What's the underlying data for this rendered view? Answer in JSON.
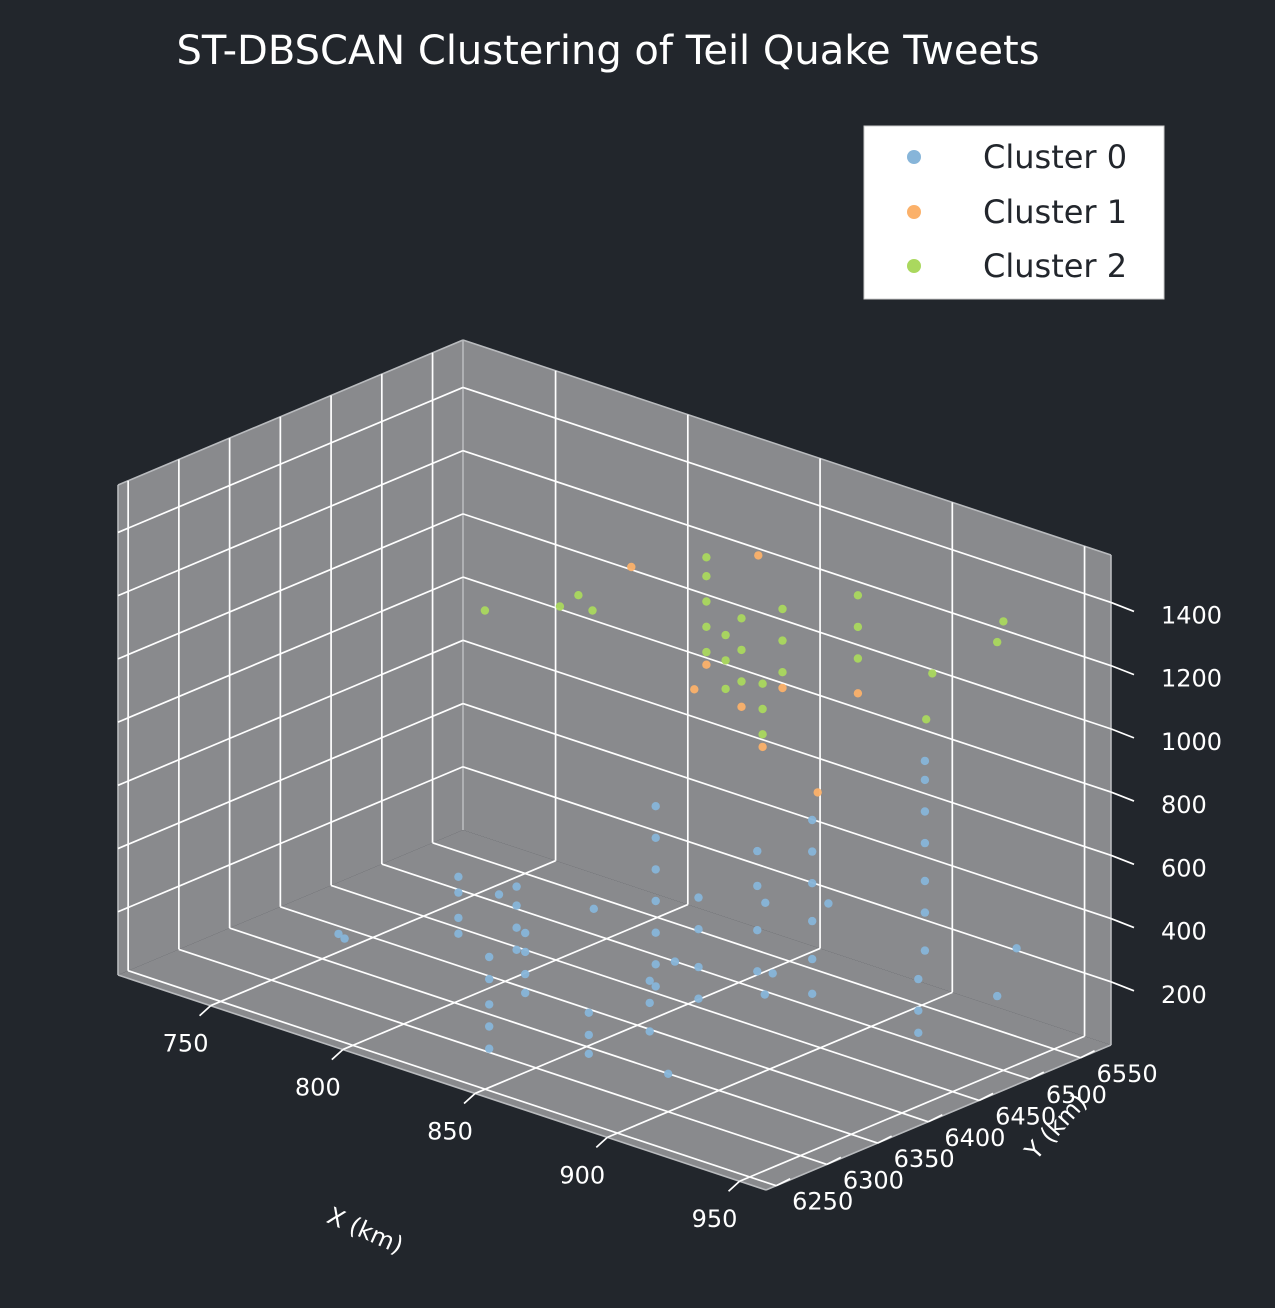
{
  "chart_data": {
    "type": "scatter",
    "dimensions": 3,
    "title": "ST-DBSCAN Clustering of Teil Quake Tweets",
    "xlabel": "X (km)",
    "ylabel": "Y (km)",
    "zlabel": "",
    "xlim": [
      715,
      960
    ],
    "ylim": [
      6240,
      6580
    ],
    "zlim": [
      0,
      1550
    ],
    "x_ticks": [
      750,
      800,
      850,
      900,
      950
    ],
    "y_ticks": [
      6250,
      6300,
      6350,
      6400,
      6450,
      6500,
      6550
    ],
    "z_ticks": [
      200,
      400,
      600,
      800,
      1000,
      1200,
      1400
    ],
    "grid": true,
    "legend_position": "top-right",
    "background": "#22262c",
    "pane_color": "#898a8d",
    "series": [
      {
        "name": "Cluster 0",
        "color": "#87b5d9",
        "points": [
          [
            790,
            6380,
            150
          ],
          [
            790,
            6380,
            200
          ],
          [
            790,
            6380,
            280
          ],
          [
            790,
            6380,
            330
          ],
          [
            812,
            6380,
            160
          ],
          [
            812,
            6380,
            230
          ],
          [
            812,
            6380,
            300
          ],
          [
            812,
            6380,
            360
          ],
          [
            826,
            6352,
            100
          ],
          [
            826,
            6352,
            160
          ],
          [
            826,
            6352,
            230
          ],
          [
            826,
            6352,
            290
          ],
          [
            840,
            6280,
            60
          ],
          [
            840,
            6280,
            130
          ],
          [
            840,
            6280,
            200
          ],
          [
            840,
            6280,
            280
          ],
          [
            840,
            6280,
            350
          ],
          [
            855,
            6405,
            130
          ],
          [
            855,
            6405,
            200
          ],
          [
            855,
            6405,
            300
          ],
          [
            855,
            6405,
            400
          ],
          [
            855,
            6405,
            500
          ],
          [
            855,
            6405,
            600
          ],
          [
            855,
            6405,
            700
          ],
          [
            875,
            6395,
            160
          ],
          [
            875,
            6395,
            260
          ],
          [
            875,
            6395,
            380
          ],
          [
            875,
            6395,
            480
          ],
          [
            880,
            6440,
            200
          ],
          [
            880,
            6440,
            330
          ],
          [
            880,
            6440,
            470
          ],
          [
            880,
            6440,
            580
          ],
          [
            895,
            6455,
            150
          ],
          [
            895,
            6455,
            260
          ],
          [
            895,
            6455,
            380
          ],
          [
            895,
            6455,
            500
          ],
          [
            895,
            6455,
            600
          ],
          [
            895,
            6455,
            700
          ],
          [
            905,
            6540,
            200
          ],
          [
            905,
            6540,
            320
          ],
          [
            905,
            6540,
            420
          ],
          [
            905,
            6540,
            540
          ],
          [
            905,
            6540,
            640
          ],
          [
            905,
            6540,
            740
          ],
          [
            905,
            6540,
            800
          ],
          [
            937,
            6450,
            150
          ],
          [
            937,
            6450,
            220
          ],
          [
            937,
            6450,
            320
          ],
          [
            870,
            6300,
            100
          ],
          [
            870,
            6300,
            160
          ],
          [
            870,
            6300,
            230
          ],
          [
            870,
            6360,
            90
          ],
          [
            870,
            6360,
            180
          ],
          [
            870,
            6360,
            250
          ],
          [
            760,
            6340,
            120
          ],
          [
            822,
            6430,
            250
          ],
          [
            940,
            6520,
            180
          ],
          [
            790,
            6420,
            220
          ],
          [
            955,
            6500,
            400
          ],
          [
            905,
            6390,
            330
          ],
          [
            845,
            6450,
            120
          ],
          [
            880,
            6510,
            320
          ],
          [
            925,
            6330,
            400
          ],
          [
            770,
            6320,
            160
          ],
          [
            860,
            6500,
            280
          ],
          [
            900,
            6300,
            120
          ]
        ]
      },
      {
        "name": "Cluster 1",
        "color": "#fbb16a",
        "points": [
          [
            855,
            6455,
            1080
          ],
          [
            860,
            6430,
            1050
          ],
          [
            874,
            6440,
            1020
          ],
          [
            878,
            6470,
            1050
          ],
          [
            895,
            6500,
            1040
          ],
          [
            905,
            6380,
            1060
          ],
          [
            922,
            6390,
            950
          ],
          [
            865,
            6480,
            1420
          ],
          [
            817,
            6480,
            1250
          ]
        ]
      },
      {
        "name": "Cluster 2",
        "color": "#aad85e",
        "points": [
          [
            855,
            6455,
            1120
          ],
          [
            855,
            6455,
            1200
          ],
          [
            855,
            6455,
            1280
          ],
          [
            855,
            6455,
            1360
          ],
          [
            855,
            6455,
            1420
          ],
          [
            868,
            6440,
            1060
          ],
          [
            868,
            6440,
            1150
          ],
          [
            868,
            6440,
            1230
          ],
          [
            874,
            6440,
            1100
          ],
          [
            874,
            6440,
            1200
          ],
          [
            874,
            6440,
            1300
          ],
          [
            878,
            6470,
            1100
          ],
          [
            878,
            6470,
            1200
          ],
          [
            878,
            6470,
            1300
          ],
          [
            895,
            6500,
            1150
          ],
          [
            895,
            6500,
            1250
          ],
          [
            895,
            6500,
            1350
          ],
          [
            905,
            6380,
            1100
          ],
          [
            905,
            6380,
            1180
          ],
          [
            905,
            6380,
            1260
          ],
          [
            820,
            6420,
            1250
          ],
          [
            810,
            6460,
            1120
          ],
          [
            800,
            6380,
            1200
          ],
          [
            790,
            6480,
            1050
          ],
          [
            940,
            6520,
            1300
          ],
          [
            940,
            6450,
            1150
          ],
          [
            950,
            6430,
            1350
          ],
          [
            950,
            6500,
            1420
          ]
        ]
      }
    ]
  }
}
